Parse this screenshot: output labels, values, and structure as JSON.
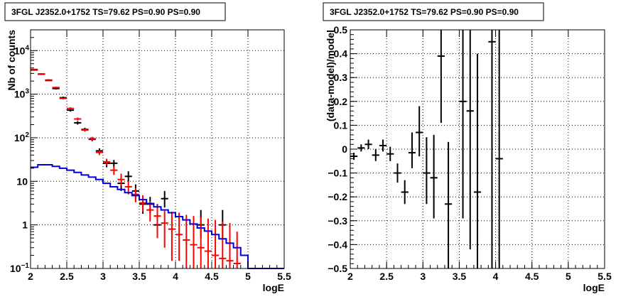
{
  "chart_data": [
    {
      "type": "scatter",
      "title": "3FGL J2352.0+1752 TS=79.62 PS=0.90 PS=0.90",
      "xlabel": "logE",
      "ylabel": "Nb of counts",
      "xlim": [
        2,
        5.5
      ],
      "ylim": [
        0.1,
        30000
      ],
      "yscale": "log",
      "grid": true,
      "x_ticks": [
        "2",
        "2.5",
        "3",
        "3.5",
        "4",
        "4.5",
        "5",
        "5.5"
      ],
      "y_ticks": [
        {
          "value": 0.1,
          "label": "10",
          "sup": "−1"
        },
        {
          "value": 1,
          "label": "1",
          "sup": ""
        },
        {
          "value": 10,
          "label": "10",
          "sup": ""
        },
        {
          "value": 100,
          "label": "10",
          "sup": "2"
        },
        {
          "value": 1000,
          "label": "10",
          "sup": "3"
        },
        {
          "value": 10000,
          "label": "10",
          "sup": "4"
        }
      ],
      "series": [
        {
          "color": "#000000",
          "kind": "points",
          "points": [
            {
              "x": 2.05,
              "y": 3600,
              "ylo": 3480,
              "yhi": 3720
            },
            {
              "x": 2.15,
              "y": 2900,
              "ylo": 2800,
              "yhi": 3000
            },
            {
              "x": 2.25,
              "y": 2100,
              "ylo": 2010,
              "yhi": 2190
            },
            {
              "x": 2.35,
              "y": 1350,
              "ylo": 1280,
              "yhi": 1420
            },
            {
              "x": 2.45,
              "y": 830,
              "ylo": 780,
              "yhi": 880
            },
            {
              "x": 2.55,
              "y": 430,
              "ylo": 400,
              "yhi": 460
            },
            {
              "x": 2.65,
              "y": 220,
              "ylo": 200,
              "yhi": 240
            },
            {
              "x": 2.75,
              "y": 155,
              "ylo": 140,
              "yhi": 170
            },
            {
              "x": 2.85,
              "y": 92,
              "ylo": 83,
              "yhi": 102
            },
            {
              "x": 2.95,
              "y": 50,
              "ylo": 43,
              "yhi": 57
            },
            {
              "x": 3.05,
              "y": 26,
              "ylo": 21,
              "yhi": 31
            },
            {
              "x": 3.15,
              "y": 26,
              "ylo": 21,
              "yhi": 31
            },
            {
              "x": 3.25,
              "y": 9,
              "ylo": 6,
              "yhi": 12
            },
            {
              "x": 3.35,
              "y": 13,
              "ylo": 10,
              "yhi": 17
            },
            {
              "x": 3.45,
              "y": 6,
              "ylo": 4,
              "yhi": 8.5
            },
            {
              "x": 3.55,
              "y": 3,
              "ylo": 1.8,
              "yhi": 4.4
            },
            {
              "x": 3.65,
              "y": 3,
              "ylo": 1.8,
              "yhi": 4.4
            },
            {
              "x": 3.75,
              "y": 1,
              "ylo": 0.5,
              "yhi": 3
            },
            {
              "x": 3.85,
              "y": 4,
              "ylo": 2.5,
              "yhi": 6
            },
            {
              "x": 4.35,
              "y": 1,
              "ylo": 0.5,
              "yhi": 2.2
            },
            {
              "x": 4.65,
              "y": 1,
              "ylo": 0.5,
              "yhi": 2.2
            }
          ]
        },
        {
          "color": "#ff0000",
          "kind": "points",
          "points": [
            {
              "x": 2.05,
              "y": 3700,
              "ylo": 3580,
              "yhi": 3820
            },
            {
              "x": 2.15,
              "y": 2850,
              "ylo": 2760,
              "yhi": 2940
            },
            {
              "x": 2.25,
              "y": 2050,
              "ylo": 1980,
              "yhi": 2120
            },
            {
              "x": 2.35,
              "y": 1420,
              "ylo": 1360,
              "yhi": 1480
            },
            {
              "x": 2.45,
              "y": 800,
              "ylo": 760,
              "yhi": 840
            },
            {
              "x": 2.55,
              "y": 470,
              "ylo": 440,
              "yhi": 500
            },
            {
              "x": 2.65,
              "y": 270,
              "ylo": 250,
              "yhi": 290
            },
            {
              "x": 2.75,
              "y": 150,
              "ylo": 138,
              "yhi": 162
            },
            {
              "x": 2.85,
              "y": 95,
              "ylo": 85,
              "yhi": 105
            },
            {
              "x": 2.95,
              "y": 46,
              "ylo": 40,
              "yhi": 52
            },
            {
              "x": 3.05,
              "y": 28,
              "ylo": 23,
              "yhi": 33
            },
            {
              "x": 3.15,
              "y": 18,
              "ylo": 14,
              "yhi": 22
            },
            {
              "x": 3.25,
              "y": 11,
              "ylo": 8,
              "yhi": 15
            },
            {
              "x": 3.35,
              "y": 7.5,
              "ylo": 5,
              "yhi": 10
            },
            {
              "x": 3.45,
              "y": 5,
              "ylo": 3.3,
              "yhi": 7
            },
            {
              "x": 3.55,
              "y": 3.2,
              "ylo": 2,
              "yhi": 4.8
            },
            {
              "x": 3.65,
              "y": 2.2,
              "ylo": 1.2,
              "yhi": 3.5
            },
            {
              "x": 3.75,
              "y": 1.6,
              "ylo": 0.5,
              "yhi": 2.8
            },
            {
              "x": 3.85,
              "y": 1.1,
              "ylo": 0.3,
              "yhi": 2.1
            },
            {
              "x": 3.95,
              "y": 0.8,
              "ylo": 0.15,
              "yhi": 2
            },
            {
              "x": 4.05,
              "y": 0.6,
              "ylo": 0.15,
              "yhi": 1.9
            },
            {
              "x": 4.15,
              "y": 0.45,
              "ylo": 0.1,
              "yhi": 1.7
            },
            {
              "x": 4.25,
              "y": 0.35,
              "ylo": 0.1,
              "yhi": 1.6
            },
            {
              "x": 4.35,
              "y": 0.3,
              "ylo": 0.1,
              "yhi": 1.5
            },
            {
              "x": 4.45,
              "y": 0.25,
              "ylo": 0.1,
              "yhi": 1.4
            },
            {
              "x": 4.55,
              "y": 0.2,
              "ylo": 0.1,
              "yhi": 1.3
            },
            {
              "x": 4.65,
              "y": 0.17,
              "ylo": 0.1,
              "yhi": 1.2
            },
            {
              "x": 4.75,
              "y": 0.15,
              "ylo": 0.1,
              "yhi": 1.1
            },
            {
              "x": 4.85,
              "y": 0.13,
              "ylo": 0.1,
              "yhi": 0.7
            }
          ]
        },
        {
          "color": "#0000dd",
          "kind": "step",
          "edges": [
            2.0,
            2.1,
            2.2,
            2.3,
            2.4,
            2.5,
            2.6,
            2.7,
            2.8,
            2.9,
            3.0,
            3.1,
            3.2,
            3.3,
            3.4,
            3.5,
            3.6,
            3.7,
            3.8,
            3.9,
            4.0,
            4.1,
            4.2,
            4.3,
            4.4,
            4.5,
            4.6,
            4.7,
            4.8,
            4.9,
            5.0,
            5.1,
            5.2,
            5.3,
            5.4,
            5.5
          ],
          "values": [
            21,
            24,
            24,
            22,
            20,
            18,
            16,
            14,
            12.5,
            11,
            9,
            7.5,
            6.5,
            5.5,
            4.7,
            3.8,
            3.1,
            2.6,
            2.2,
            1.9,
            1.55,
            1.3,
            1.05,
            0.85,
            0.72,
            0.6,
            0.48,
            0.38,
            0.3,
            0.2,
            0.1,
            0.1,
            0.1,
            0.1,
            0.1
          ]
        }
      ]
    },
    {
      "type": "scatter",
      "title": "3FGL J2352.0+1752 TS=79.62 PS=0.90 PS=0.90",
      "xlabel": "logE",
      "ylabel": "(data-model)/model",
      "xlim": [
        2,
        5.5
      ],
      "ylim": [
        -0.5,
        0.5
      ],
      "yscale": "linear",
      "grid": true,
      "x_ticks": [
        "2",
        "2.5",
        "3",
        "3.5",
        "4",
        "4.5",
        "5",
        "5.5"
      ],
      "y_ticks": [
        "−0.5",
        "−0.4",
        "−0.3",
        "−0.2",
        "−0.1",
        "0",
        "0.1",
        "0.2",
        "0.3",
        "0.4",
        "0.5"
      ],
      "series": [
        {
          "color": "#000000",
          "kind": "points",
          "points": [
            {
              "x": 2.05,
              "y": -0.03,
              "ylo": -0.045,
              "yhi": -0.015
            },
            {
              "x": 2.15,
              "y": 0.005,
              "ylo": -0.01,
              "yhi": 0.02
            },
            {
              "x": 2.25,
              "y": 0.02,
              "ylo": 0.0,
              "yhi": 0.04
            },
            {
              "x": 2.35,
              "y": -0.025,
              "ylo": -0.05,
              "yhi": 0.0
            },
            {
              "x": 2.45,
              "y": 0.015,
              "ylo": -0.01,
              "yhi": 0.04
            },
            {
              "x": 2.55,
              "y": -0.02,
              "ylo": -0.05,
              "yhi": 0.01
            },
            {
              "x": 2.65,
              "y": -0.1,
              "ylo": -0.14,
              "yhi": -0.06
            },
            {
              "x": 2.75,
              "y": -0.18,
              "ylo": -0.23,
              "yhi": -0.13
            },
            {
              "x": 2.85,
              "y": -0.015,
              "ylo": -0.08,
              "yhi": 0.07
            },
            {
              "x": 2.95,
              "y": 0.07,
              "ylo": -0.03,
              "yhi": 0.18
            },
            {
              "x": 3.05,
              "y": -0.1,
              "ylo": -0.23,
              "yhi": 0.05
            },
            {
              "x": 3.15,
              "y": -0.12,
              "ylo": -0.29,
              "yhi": 0.06
            },
            {
              "x": 3.25,
              "y": 0.39,
              "ylo": 0.11,
              "yhi": 0.5
            },
            {
              "x": 3.35,
              "y": -0.23,
              "ylo": -0.5,
              "yhi": 0.03
            },
            {
              "x": 3.55,
              "y": 0.2,
              "ylo": -0.29,
              "yhi": 0.5
            },
            {
              "x": 3.65,
              "y": 0.16,
              "ylo": -0.42,
              "yhi": 0.5
            },
            {
              "x": 3.75,
              "y": -0.18,
              "ylo": -0.5,
              "yhi": 0.4
            },
            {
              "x": 3.95,
              "y": 0.45,
              "ylo": -0.5,
              "yhi": 0.5
            },
            {
              "x": 4.05,
              "y": -0.04,
              "ylo": -0.5,
              "yhi": 0.5
            }
          ]
        }
      ]
    }
  ]
}
